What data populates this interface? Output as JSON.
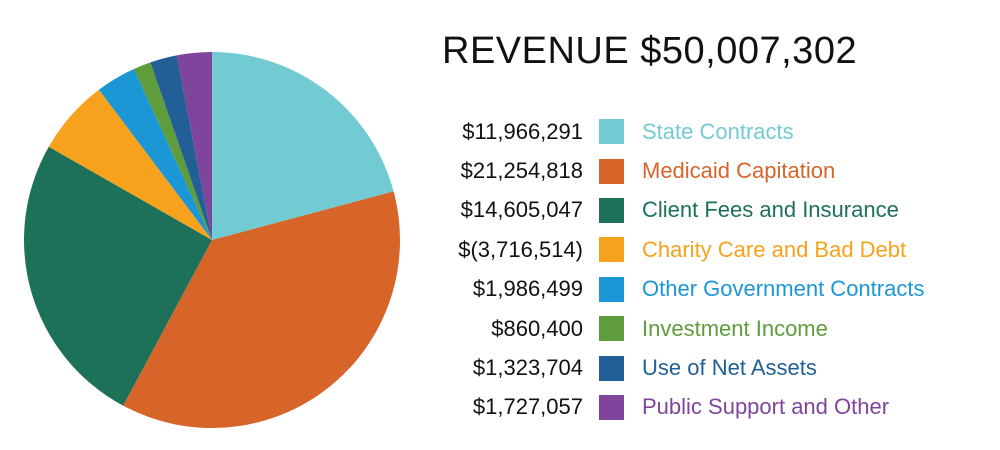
{
  "title": "REVENUE $50,007,302",
  "chart_data": {
    "type": "pie",
    "title": "REVENUE $50,007,302",
    "legend_position": "right",
    "slices": [
      {
        "label": "State Contracts",
        "value": 11966291,
        "value_label": "$11,966,291",
        "color": "#72cbd3"
      },
      {
        "label": "Medicaid Capitation",
        "value": 21254818,
        "value_label": "$21,254,818",
        "color": "#d7652a"
      },
      {
        "label": "Client Fees and Insurance",
        "value": 14605047,
        "value_label": "$14,605,047",
        "color": "#1e7159"
      },
      {
        "label": "Charity Care and Bad Debt",
        "value": -3716514,
        "value_label": "$(3,716,514)",
        "color": "#f7a21c"
      },
      {
        "label": "Other Government Contracts",
        "value": 1986499,
        "value_label": "$1,986,499",
        "color": "#1c97d5"
      },
      {
        "label": "Investment Income",
        "value": 860400,
        "value_label": "$860,400",
        "color": "#5f9c3c"
      },
      {
        "label": "Use of Net Assets",
        "value": 1323704,
        "value_label": "$1,323,704",
        "color": "#225f96"
      },
      {
        "label": "Public Support and Other",
        "value": 1727057,
        "value_label": "$1,727,057",
        "color": "#7f459d"
      }
    ]
  }
}
